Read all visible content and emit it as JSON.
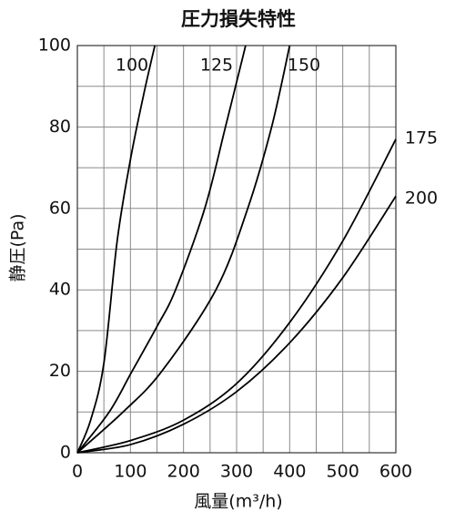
{
  "chart_data": {
    "type": "line",
    "title": "圧力損失特性",
    "x_label": "風量(m³/h)",
    "y_label": "静圧(Pa)",
    "xlim": [
      0,
      600
    ],
    "ylim": [
      0,
      100
    ],
    "xticks": [
      0,
      100,
      200,
      300,
      400,
      500,
      600
    ],
    "yticks": [
      0,
      20,
      40,
      60,
      80,
      100
    ],
    "minor_xticks": [
      50,
      150,
      250,
      350,
      450,
      550
    ],
    "minor_yticks": [
      10,
      30,
      50,
      70,
      90
    ],
    "grid": true,
    "series": [
      {
        "name": "100",
        "color": "#000000",
        "x": [
          0,
          25,
          50,
          75,
          100,
          125,
          146
        ],
        "values": [
          0,
          8,
          22,
          52,
          72,
          88,
          100
        ]
      },
      {
        "name": "125",
        "color": "#000000",
        "x": [
          0,
          60,
          103,
          150,
          185,
          240,
          279,
          317
        ],
        "values": [
          0,
          10,
          20,
          31,
          40,
          60,
          80,
          100
        ]
      },
      {
        "name": "150",
        "color": "#000000",
        "x": [
          0,
          86,
          159,
          261,
          321,
          366,
          400
        ],
        "values": [
          0,
          10,
          20,
          40,
          60,
          80,
          100
        ]
      },
      {
        "name": "175",
        "color": "#000000",
        "x": [
          0,
          100,
          200,
          300,
          400,
          500,
          600
        ],
        "values": [
          0,
          3,
          8,
          17,
          32,
          52,
          77
        ]
      },
      {
        "name": "200",
        "color": "#000000",
        "x": [
          0,
          100,
          200,
          300,
          400,
          500,
          600
        ],
        "values": [
          0,
          2,
          7,
          15,
          27,
          43,
          63
        ]
      }
    ]
  }
}
